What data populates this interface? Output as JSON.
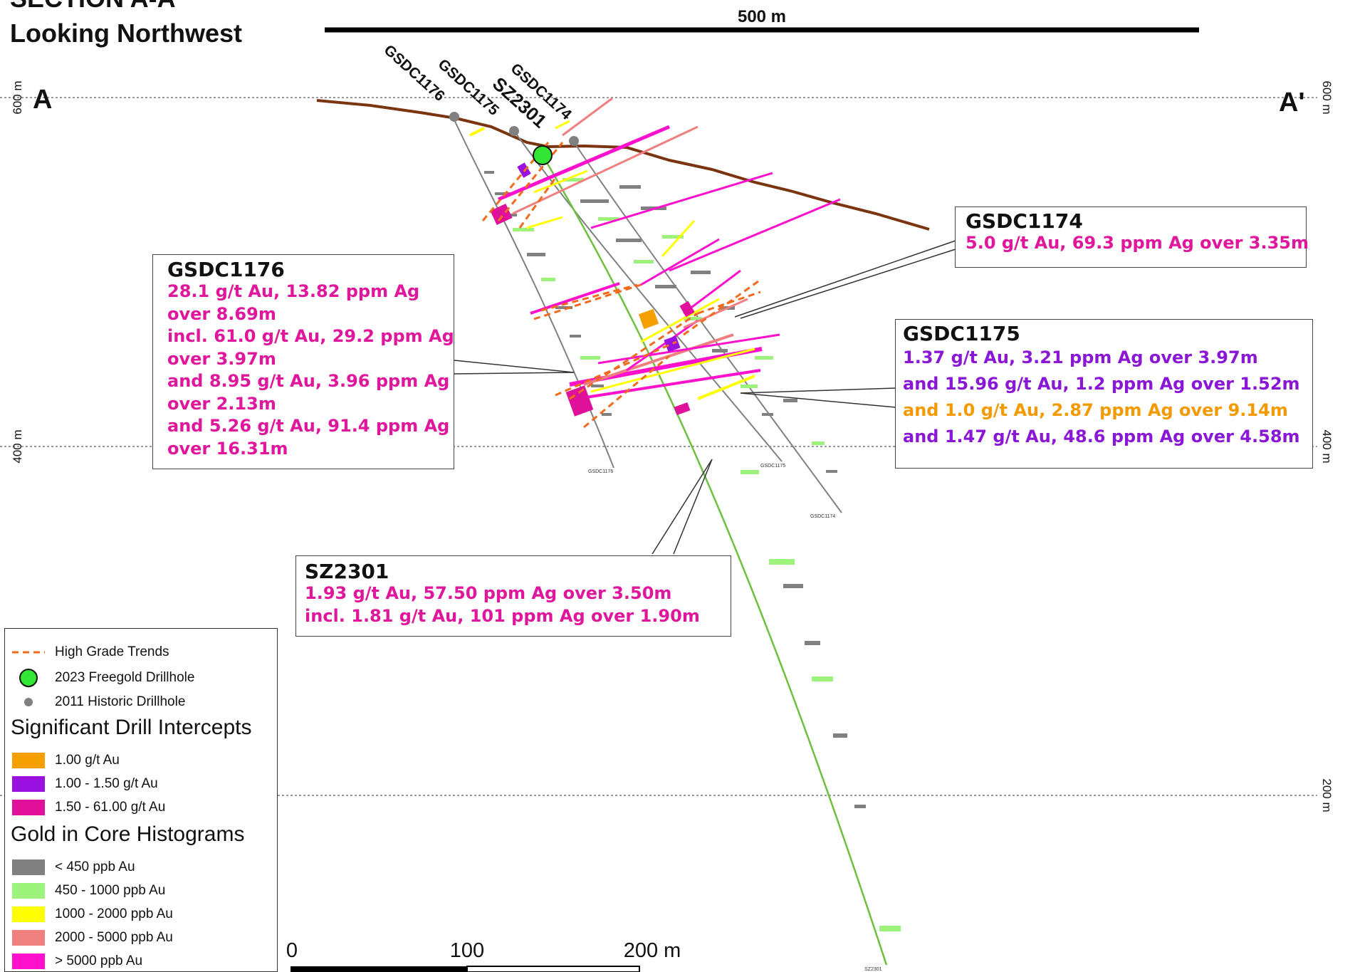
{
  "title": {
    "line1": "SECTION A-A'",
    "line2": "Looking Northwest"
  },
  "top_scale": {
    "label": "500 m"
  },
  "section_ends": {
    "left": "A",
    "right": "A'"
  },
  "elevation_labels": {
    "left": [
      "600 m",
      "400 m"
    ],
    "right": [
      "600 m",
      "400 m",
      "200 m"
    ]
  },
  "drillhole_labels": [
    "GSDC1176",
    "GSDC1175",
    "SZ2301",
    "GSDC1174"
  ],
  "hole_end_labels": [
    "GSDC1176",
    "GSDC1175",
    "GSDC1174",
    "SZ2301"
  ],
  "callouts": {
    "gsdc1174": {
      "title": "GSDC1174",
      "lines": [
        {
          "text": "5.0 g/t Au, 69.3 ppm Ag over 3.35m",
          "color": "pink"
        }
      ]
    },
    "gsdc1176": {
      "title": "GSDC1176",
      "lines": [
        {
          "text": "28.1 g/t Au, 13.82 ppm Ag",
          "color": "pink"
        },
        {
          "text": "over 8.69m",
          "color": "pink"
        },
        {
          "text": "incl. 61.0 g/t Au, 29.2 ppm Ag",
          "color": "pink"
        },
        {
          "text": "over 3.97m",
          "color": "pink"
        },
        {
          "text": "and 8.95 g/t Au, 3.96 ppm Ag",
          "color": "pink"
        },
        {
          "text": "over 2.13m",
          "color": "pink"
        },
        {
          "text": "and 5.26 g/t Au, 91.4 ppm Ag",
          "color": "pink"
        },
        {
          "text": "over 16.31m",
          "color": "pink"
        }
      ]
    },
    "gsdc1175": {
      "title": "GSDC1175",
      "lines": [
        {
          "text": "1.37 g/t Au, 3.21 ppm Ag over 3.97m",
          "color": "purple"
        },
        {
          "text": "and 15.96 g/t Au, 1.2 ppm Ag over 1.52m",
          "color": "pink"
        },
        {
          "text": "and 1.0 g/t Au, 2.87 ppm Ag over 9.14m",
          "color": "orange"
        },
        {
          "text": "and 1.47 g/t Au, 48.6 ppm Ag over 4.58m",
          "color": "purple"
        }
      ]
    },
    "sz2301": {
      "title": "SZ2301",
      "lines": [
        {
          "text": "1.93 g/t Au, 57.50 ppm Ag over 3.50m",
          "color": "pink"
        },
        {
          "text": "incl. 1.81 g/t Au, 101 ppm Ag over 1.90m",
          "color": "pink"
        }
      ]
    }
  },
  "legend": {
    "symbols": [
      {
        "label": "High Grade Trends",
        "icon": "dashed-line-icon"
      },
      {
        "label": "2023 Freegold Drillhole",
        "icon": "green-circle-icon"
      },
      {
        "label": "2011 Historic Drillhole",
        "icon": "grey-dot-icon"
      }
    ],
    "intercepts_heading": "Significant Drill Intercepts",
    "intercepts": [
      {
        "label": "1.00 g/t Au",
        "color": "#f5a000"
      },
      {
        "label": "1.00 - 1.50 g/t Au",
        "color": "#9a10e0"
      },
      {
        "label": "1.50 - 61.00 g/t Au",
        "color": "#e0109a"
      }
    ],
    "histogram_heading": "Gold in Core Histograms",
    "histograms": [
      {
        "label": "< 450 ppb Au",
        "color": "#808080"
      },
      {
        "label": "450 - 1000 ppb Au",
        "color": "#9cf27a"
      },
      {
        "label": "1000 - 2000 ppb Au",
        "color": "#ffff00"
      },
      {
        "label": "2000 - 5000 ppb Au",
        "color": "#f08080"
      },
      {
        "label": "> 5000 ppb Au",
        "color": "#ff10cc"
      }
    ]
  },
  "scale_bar": {
    "labels": [
      "0",
      "100",
      "200 m"
    ]
  },
  "colors": {
    "topography": "#7b3410",
    "hole_trace": "#808080",
    "sz2301_trace": "#6fbf3f",
    "trend_dash": "#f26a1b",
    "pink": "#e0169c",
    "purple": "#8a16d6",
    "orange": "#f29a00",
    "new_hole": "#33e633"
  }
}
